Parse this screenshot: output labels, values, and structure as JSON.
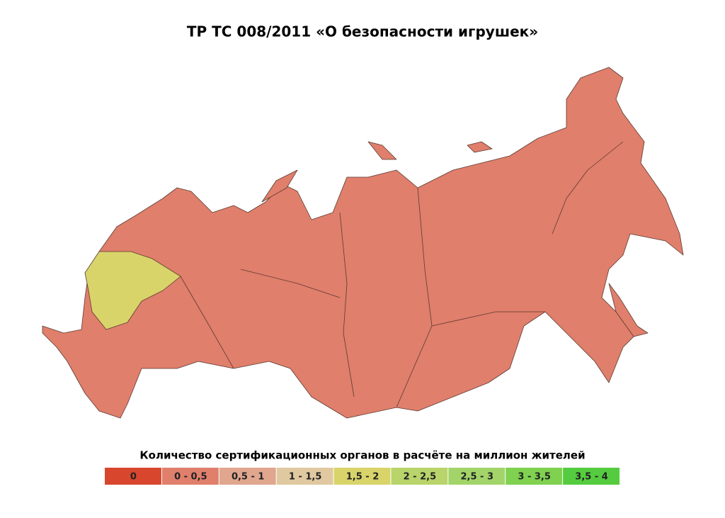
{
  "title": "ТР ТС 008/2011 «О безопасности игрушек»",
  "legend": {
    "title": "Количество сертификационных органов в расчёте на миллион жителей",
    "items": [
      {
        "label": "0",
        "color": "#d9462e"
      },
      {
        "label": "0 - 0,5",
        "color": "#e07f6b"
      },
      {
        "label": "0,5 - 1",
        "color": "#e0a68e"
      },
      {
        "label": "1 - 1,5",
        "color": "#e0c9a0"
      },
      {
        "label": "1,5 - 2",
        "color": "#d9d46a"
      },
      {
        "label": "2 - 2,5",
        "color": "#b8d46a"
      },
      {
        "label": "2,5 - 3",
        "color": "#a3d46a"
      },
      {
        "label": "3 - 3,5",
        "color": "#7fd14f"
      },
      {
        "label": "3,5 - 4",
        "color": "#55cc3f"
      }
    ]
  }
}
